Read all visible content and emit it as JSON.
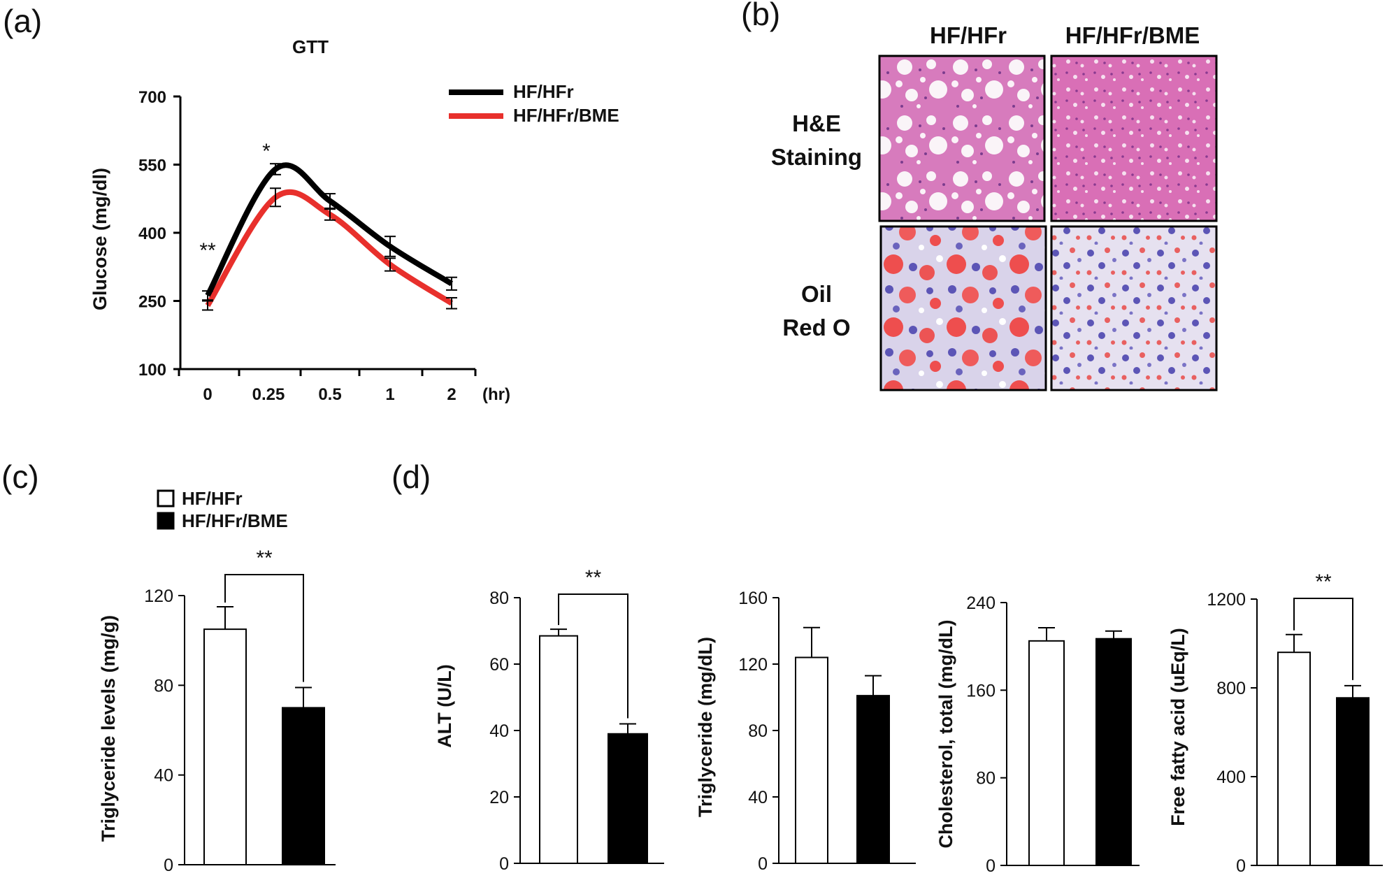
{
  "panels": {
    "a": "(a)",
    "b": "(b)",
    "c": "(c)",
    "d": "(d)"
  },
  "chart_data": [
    {
      "id": "a",
      "type": "line",
      "title": "GTT",
      "ylabel": "Glucose (mg/dl)",
      "xlabel": "(hr)",
      "categories": [
        "0",
        "0.25",
        "0.5",
        "1",
        "2"
      ],
      "yticks": [
        100,
        250,
        400,
        550,
        700
      ],
      "ylim": [
        100,
        700
      ],
      "series": [
        {
          "name": "HF/HFr",
          "color": "#000000",
          "values": [
            262,
            540,
            470,
            370,
            288
          ],
          "errors": [
            10,
            12,
            16,
            22,
            14
          ]
        },
        {
          "name": "HF/HFr/BME",
          "color": "#e8302c",
          "values": [
            240,
            478,
            440,
            330,
            245
          ],
          "errors": [
            10,
            20,
            12,
            14,
            12
          ]
        }
      ],
      "legend_position": "top-right",
      "significance": [
        "**",
        "*"
      ]
    },
    {
      "id": "c",
      "type": "bar",
      "ylabel": "Triglyceride levels (mg/g)",
      "yticks": [
        0,
        40,
        80,
        120
      ],
      "ylim": [
        0,
        120
      ],
      "series": [
        {
          "name": "HF/HFr",
          "fill": "#ffffff",
          "value": 105,
          "error": 10
        },
        {
          "name": "HF/HFr/BME",
          "fill": "#000000",
          "value": 70,
          "error": 9
        }
      ],
      "significance": "**"
    },
    {
      "id": "d1",
      "type": "bar",
      "ylabel": "ALT (U/L)",
      "yticks": [
        0,
        20,
        40,
        60,
        80
      ],
      "ylim": [
        0,
        80
      ],
      "series": [
        {
          "name": "HF/HFr",
          "fill": "#ffffff",
          "value": 68.5,
          "error": 2
        },
        {
          "name": "HF/HFr/BME",
          "fill": "#000000",
          "value": 39,
          "error": 3
        }
      ],
      "significance": "**"
    },
    {
      "id": "d2",
      "type": "bar",
      "ylabel": "Triglyceride (mg/dL)",
      "yticks": [
        0,
        40,
        80,
        120,
        160
      ],
      "ylim": [
        0,
        160
      ],
      "series": [
        {
          "name": "HF/HFr",
          "fill": "#ffffff",
          "value": 124,
          "error": 18
        },
        {
          "name": "HF/HFr/BME",
          "fill": "#000000",
          "value": 101,
          "error": 12
        }
      ]
    },
    {
      "id": "d3",
      "type": "bar",
      "ylabel": "Cholesterol, total (mg/dL)",
      "yticks": [
        0,
        80,
        160,
        240
      ],
      "ylim": [
        0,
        240
      ],
      "series": [
        {
          "name": "HF/HFr",
          "fill": "#ffffff",
          "value": 205,
          "error": 12
        },
        {
          "name": "HF/HFr/BME",
          "fill": "#000000",
          "value": 207,
          "error": 7
        }
      ]
    },
    {
      "id": "d4",
      "type": "bar",
      "ylabel": "Free fatty acid (uEq/L)",
      "yticks": [
        0,
        400,
        800,
        1200
      ],
      "ylim": [
        0,
        1200
      ],
      "series": [
        {
          "name": "HF/HFr",
          "fill": "#ffffff",
          "value": 960,
          "error": 80
        },
        {
          "name": "HF/HFr/BME",
          "fill": "#000000",
          "value": 755,
          "error": 55
        }
      ],
      "significance": "**"
    }
  ],
  "legend_c": [
    {
      "label": "HF/HFr",
      "fill": "#ffffff"
    },
    {
      "label": "HF/HFr/BME",
      "fill": "#000000"
    }
  ],
  "histology": {
    "columns": [
      "HF/HFr",
      "HF/HFr/BME"
    ],
    "rows": [
      {
        "label_line1": "H&E",
        "label_line2": "Staining"
      },
      {
        "label_line1": "Oil",
        "label_line2": "Red O"
      }
    ]
  }
}
